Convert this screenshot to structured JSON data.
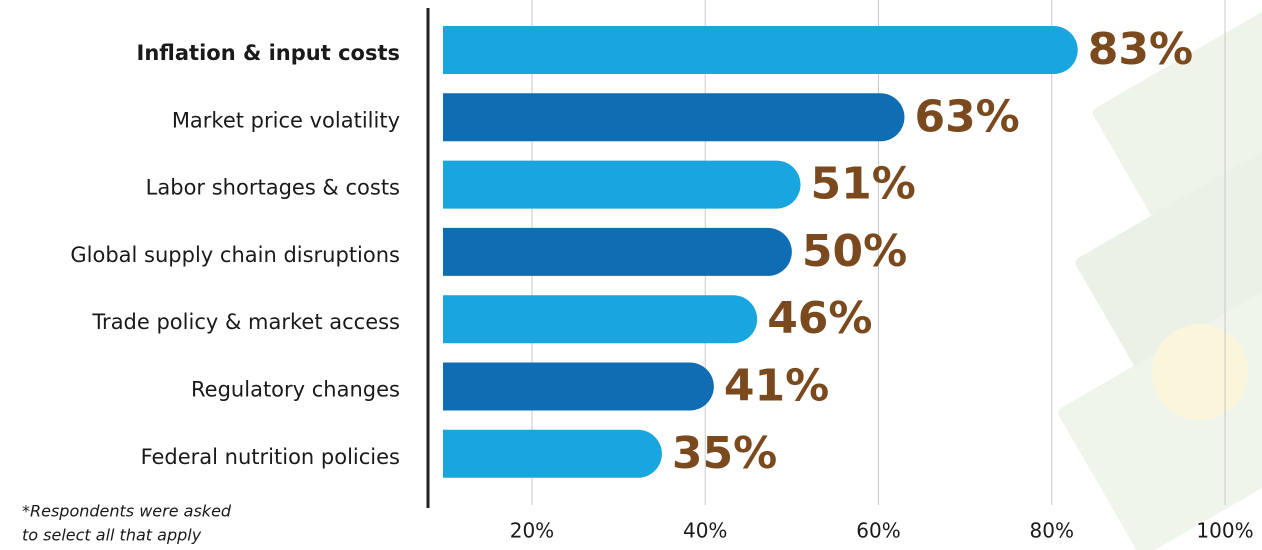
{
  "chart_data": {
    "type": "bar",
    "orientation": "horizontal",
    "categories": [
      "Inflation & input costs",
      "Market price volatility",
      "Labor shortages & costs",
      "Global supply chain disruptions",
      "Trade policy & market access",
      "Regulatory changes",
      "Federal nutrition policies"
    ],
    "values": [
      83,
      63,
      51,
      50,
      46,
      41,
      35
    ],
    "value_labels": [
      "83%",
      "63%",
      "51%",
      "50%",
      "46%",
      "41%",
      "35%"
    ],
    "colors": [
      "#19a6df",
      "#0f6db4",
      "#19a6df",
      "#0f6db4",
      "#19a6df",
      "#0f6db4",
      "#19a6df"
    ],
    "label_color": "#7a4a1e",
    "xlim": [
      8,
      100
    ],
    "xticks": [
      {
        "value": 20,
        "label": "20%"
      },
      {
        "value": 40,
        "label": "40%"
      },
      {
        "value": 60,
        "label": "60%"
      },
      {
        "value": 80,
        "label": "80%"
      },
      {
        "value": 100,
        "label": "100%"
      }
    ],
    "grid": true,
    "note": [
      "*Respondents were asked",
      "to select all that apply"
    ]
  }
}
